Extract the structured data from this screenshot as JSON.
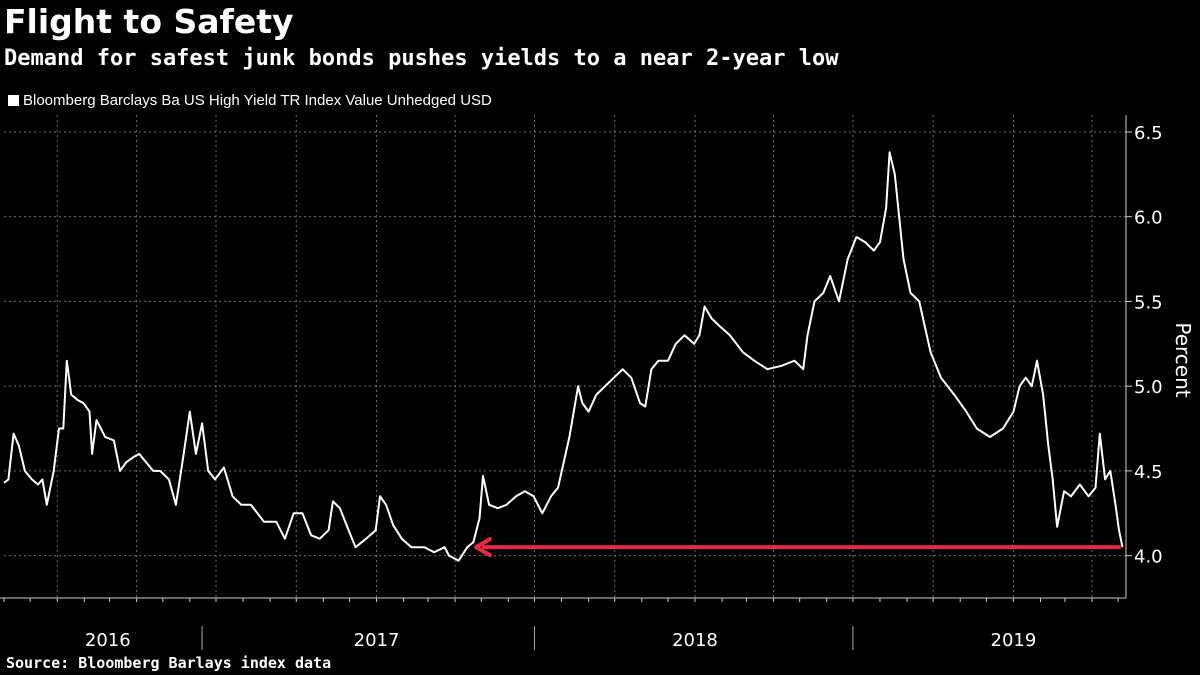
{
  "header": {
    "title": "Flight to Safety",
    "subtitle": "Demand for safest junk bonds pushes yields to a near 2-year low"
  },
  "legend": {
    "label": "Bloomberg Barclays Ba US High Yield TR Index Value Unhedged USD"
  },
  "footer": {
    "source": "Source: Bloomberg Barlays index data"
  },
  "colors": {
    "background": "#000000",
    "line": "#ffffff",
    "grid": "#6e6e6e",
    "arrow": "#e8283f"
  },
  "chart_data": {
    "type": "line",
    "ylabel": "Percent",
    "ylim": [
      3.75,
      6.6
    ],
    "yticks": [
      4.0,
      4.5,
      5.0,
      5.5,
      6.0,
      6.5
    ],
    "ytick_labels": [
      "4.0",
      "4.5",
      "5.0",
      "5.5",
      "6.0",
      "6.5"
    ],
    "xlim": [
      "2015-11-01",
      "2019-05-10"
    ],
    "year_labels": [
      {
        "label": "2016",
        "center": "2016-02-28"
      },
      {
        "label": "2017",
        "center": "2017-01-01"
      },
      {
        "label": "2018",
        "center": "2018-01-01"
      },
      {
        "label": "2019",
        "center": "2019-01-01"
      }
    ],
    "year_dividers": [
      "2016-06-15",
      "2017-07-01",
      "2018-07-01"
    ],
    "grid": true,
    "series": [
      {
        "values": [
          [
            "2015-11-01",
            4.43
          ],
          [
            "2015-11-06",
            4.45
          ],
          [
            "2015-11-12",
            4.72
          ],
          [
            "2015-11-18",
            4.65
          ],
          [
            "2015-11-25",
            4.5
          ],
          [
            "2015-12-03",
            4.45
          ],
          [
            "2015-12-10",
            4.42
          ],
          [
            "2015-12-15",
            4.45
          ],
          [
            "2015-12-20",
            4.3
          ],
          [
            "2015-12-28",
            4.5
          ],
          [
            "2016-01-03",
            4.75
          ],
          [
            "2016-01-08",
            4.75
          ],
          [
            "2016-01-12",
            5.15
          ],
          [
            "2016-01-17",
            4.95
          ],
          [
            "2016-01-24",
            4.92
          ],
          [
            "2016-01-31",
            4.9
          ],
          [
            "2016-02-07",
            4.85
          ],
          [
            "2016-02-10",
            4.6
          ],
          [
            "2016-02-15",
            4.8
          ],
          [
            "2016-02-25",
            4.7
          ],
          [
            "2016-03-06",
            4.68
          ],
          [
            "2016-03-13",
            4.5
          ],
          [
            "2016-03-20",
            4.55
          ],
          [
            "2016-03-28",
            4.58
          ],
          [
            "2016-04-04",
            4.6
          ],
          [
            "2016-04-12",
            4.55
          ],
          [
            "2016-04-20",
            4.5
          ],
          [
            "2016-04-28",
            4.5
          ],
          [
            "2016-05-08",
            4.45
          ],
          [
            "2016-05-16",
            4.3
          ],
          [
            "2016-05-25",
            4.6
          ],
          [
            "2016-06-01",
            4.85
          ],
          [
            "2016-06-08",
            4.6
          ],
          [
            "2016-06-15",
            4.78
          ],
          [
            "2016-06-22",
            4.5
          ],
          [
            "2016-06-30",
            4.45
          ],
          [
            "2016-07-10",
            4.52
          ],
          [
            "2016-07-20",
            4.35
          ],
          [
            "2016-07-30",
            4.3
          ],
          [
            "2016-08-10",
            4.3
          ],
          [
            "2016-08-25",
            4.2
          ],
          [
            "2016-09-08",
            4.2
          ],
          [
            "2016-09-18",
            4.1
          ],
          [
            "2016-09-28",
            4.25
          ],
          [
            "2016-10-08",
            4.25
          ],
          [
            "2016-10-18",
            4.12
          ],
          [
            "2016-10-28",
            4.1
          ],
          [
            "2016-11-07",
            4.15
          ],
          [
            "2016-11-12",
            4.32
          ],
          [
            "2016-11-20",
            4.28
          ],
          [
            "2016-11-30",
            4.15
          ],
          [
            "2016-12-08",
            4.05
          ],
          [
            "2016-12-20",
            4.1
          ],
          [
            "2016-12-31",
            4.15
          ],
          [
            "2017-01-05",
            4.35
          ],
          [
            "2017-01-12",
            4.3
          ],
          [
            "2017-01-20",
            4.18
          ],
          [
            "2017-01-30",
            4.1
          ],
          [
            "2017-02-10",
            4.05
          ],
          [
            "2017-02-25",
            4.05
          ],
          [
            "2017-03-08",
            4.02
          ],
          [
            "2017-03-20",
            4.05
          ],
          [
            "2017-03-25",
            4.0
          ],
          [
            "2017-04-05",
            3.97
          ],
          [
            "2017-04-15",
            4.05
          ],
          [
            "2017-04-22",
            4.08
          ],
          [
            "2017-04-29",
            4.22
          ],
          [
            "2017-05-03",
            4.47
          ],
          [
            "2017-05-10",
            4.3
          ],
          [
            "2017-05-20",
            4.28
          ],
          [
            "2017-05-30",
            4.3
          ],
          [
            "2017-06-10",
            4.35
          ],
          [
            "2017-06-20",
            4.38
          ],
          [
            "2017-06-30",
            4.35
          ],
          [
            "2017-07-10",
            4.25
          ],
          [
            "2017-07-20",
            4.35
          ],
          [
            "2017-07-28",
            4.4
          ],
          [
            "2017-08-10",
            4.7
          ],
          [
            "2017-08-20",
            5.0
          ],
          [
            "2017-08-25",
            4.9
          ],
          [
            "2017-09-01",
            4.85
          ],
          [
            "2017-09-10",
            4.95
          ],
          [
            "2017-09-20",
            5.0
          ],
          [
            "2017-09-30",
            5.05
          ],
          [
            "2017-10-10",
            5.1
          ],
          [
            "2017-10-20",
            5.05
          ],
          [
            "2017-10-30",
            4.9
          ],
          [
            "2017-11-05",
            4.88
          ],
          [
            "2017-11-12",
            5.1
          ],
          [
            "2017-11-20",
            5.15
          ],
          [
            "2017-12-01",
            5.15
          ],
          [
            "2017-12-10",
            5.25
          ],
          [
            "2017-12-20",
            5.3
          ],
          [
            "2017-12-31",
            5.25
          ],
          [
            "2018-01-06",
            5.3
          ],
          [
            "2018-01-12",
            5.47
          ],
          [
            "2018-01-20",
            5.4
          ],
          [
            "2018-01-30",
            5.35
          ],
          [
            "2018-02-10",
            5.3
          ],
          [
            "2018-02-25",
            5.2
          ],
          [
            "2018-03-10",
            5.15
          ],
          [
            "2018-03-25",
            5.1
          ],
          [
            "2018-04-10",
            5.12
          ],
          [
            "2018-04-25",
            5.15
          ],
          [
            "2018-05-05",
            5.1
          ],
          [
            "2018-05-10",
            5.3
          ],
          [
            "2018-05-18",
            5.5
          ],
          [
            "2018-05-28",
            5.55
          ],
          [
            "2018-06-05",
            5.65
          ],
          [
            "2018-06-15",
            5.5
          ],
          [
            "2018-06-25",
            5.75
          ],
          [
            "2018-07-05",
            5.88
          ],
          [
            "2018-07-15",
            5.85
          ],
          [
            "2018-07-25",
            5.8
          ],
          [
            "2018-08-01",
            5.85
          ],
          [
            "2018-08-08",
            6.05
          ],
          [
            "2018-08-12",
            6.38
          ],
          [
            "2018-08-18",
            6.25
          ],
          [
            "2018-08-28",
            5.75
          ],
          [
            "2018-09-05",
            5.55
          ],
          [
            "2018-09-15",
            5.5
          ],
          [
            "2018-09-28",
            5.2
          ],
          [
            "2018-10-10",
            5.05
          ],
          [
            "2018-10-25",
            4.95
          ],
          [
            "2018-11-08",
            4.85
          ],
          [
            "2018-11-20",
            4.75
          ],
          [
            "2018-12-05",
            4.7
          ],
          [
            "2018-12-20",
            4.75
          ],
          [
            "2019-01-01",
            4.85
          ],
          [
            "2019-01-08",
            5.0
          ],
          [
            "2019-01-15",
            5.05
          ],
          [
            "2019-01-22",
            5.0
          ],
          [
            "2019-01-28",
            5.15
          ],
          [
            "2019-02-04",
            4.95
          ],
          [
            "2019-02-10",
            4.65
          ],
          [
            "2019-02-15",
            4.45
          ],
          [
            "2019-02-20",
            4.17
          ],
          [
            "2019-02-28",
            4.38
          ],
          [
            "2019-03-08",
            4.35
          ],
          [
            "2019-03-18",
            4.42
          ],
          [
            "2019-03-28",
            4.35
          ],
          [
            "2019-04-05",
            4.4
          ],
          [
            "2019-04-10",
            4.72
          ],
          [
            "2019-04-16",
            4.45
          ],
          [
            "2019-04-22",
            4.5
          ],
          [
            "2019-04-28",
            4.3
          ],
          [
            "2019-05-02",
            4.15
          ],
          [
            "2019-05-06",
            4.05
          ]
        ]
      }
    ],
    "annotation": {
      "type": "arrow",
      "y": 4.05,
      "x_from": "2019-05-04",
      "x_to": "2017-04-25"
    }
  }
}
